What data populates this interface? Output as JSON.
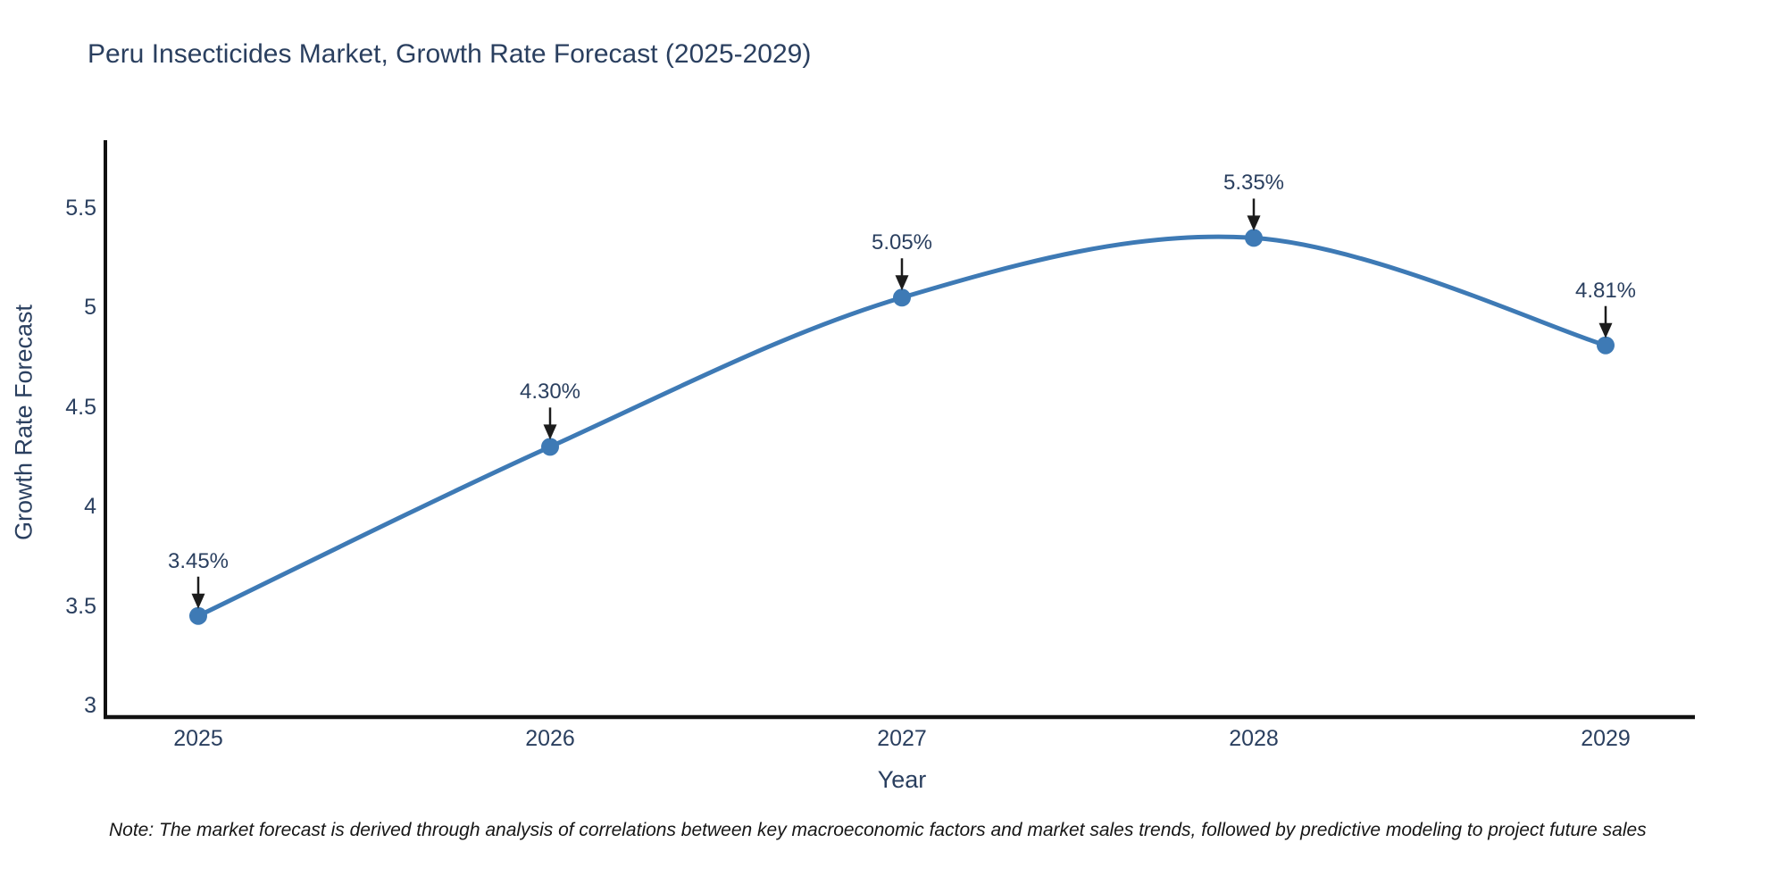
{
  "chart_data": {
    "type": "line",
    "title": "Peru Insecticides Market, Growth Rate Forecast (2025-2029)",
    "xlabel": "Year",
    "ylabel": "Growth Rate Forecast",
    "categories": [
      "2025",
      "2026",
      "2027",
      "2028",
      "2029"
    ],
    "values": [
      3.45,
      4.3,
      5.05,
      5.35,
      4.81
    ],
    "point_labels": [
      "3.45%",
      "4.30%",
      "5.05%",
      "5.35%",
      "4.81%"
    ],
    "yticks": [
      "3",
      "3.5",
      "4",
      "4.5",
      "5",
      "5.5"
    ],
    "ylim": [
      2.94,
      5.83
    ],
    "grid": false,
    "legend": false,
    "line_color": "#3e7ab5",
    "marker_color": "#3e7ab5",
    "axis_line_color": "#111111",
    "annotation_arrow_color": "#1c1c1c",
    "text_color": "#2a3f5f",
    "note": "Note: The market forecast is derived through analysis of correlations between key macroeconomic factors and market sales trends, followed by predictive modeling to project future sales"
  }
}
